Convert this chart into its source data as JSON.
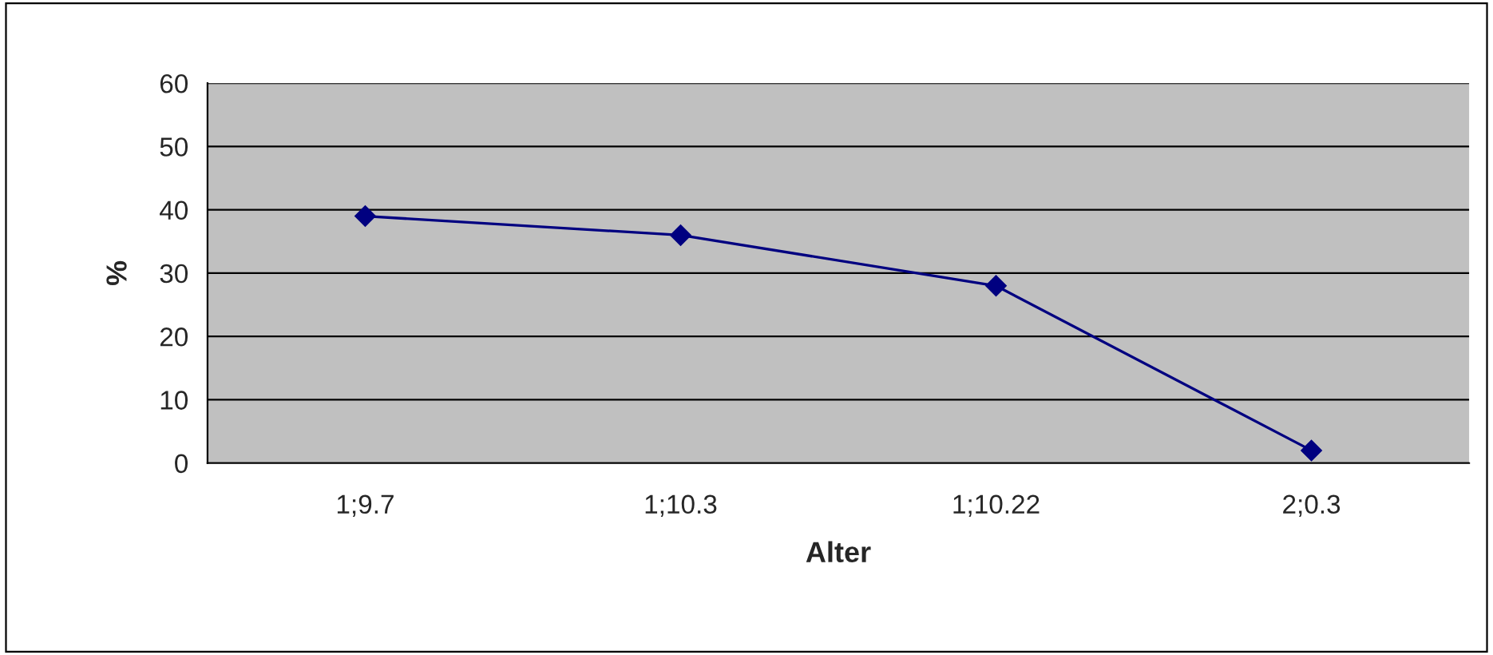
{
  "chart_data": {
    "type": "line",
    "xlabel": "Alter",
    "ylabel": "%",
    "categories": [
      "1;9.7",
      "1;10.3",
      "1;10.22",
      "2;0.3"
    ],
    "series": [
      {
        "color": "#000080",
        "values": [
          39,
          36,
          28,
          2
        ]
      }
    ],
    "ylim": [
      0,
      60
    ],
    "yticks": [
      0,
      10,
      20,
      30,
      40,
      50,
      60
    ],
    "grid": "y",
    "legend": false,
    "marker": "diamond",
    "line_style": "solid"
  }
}
